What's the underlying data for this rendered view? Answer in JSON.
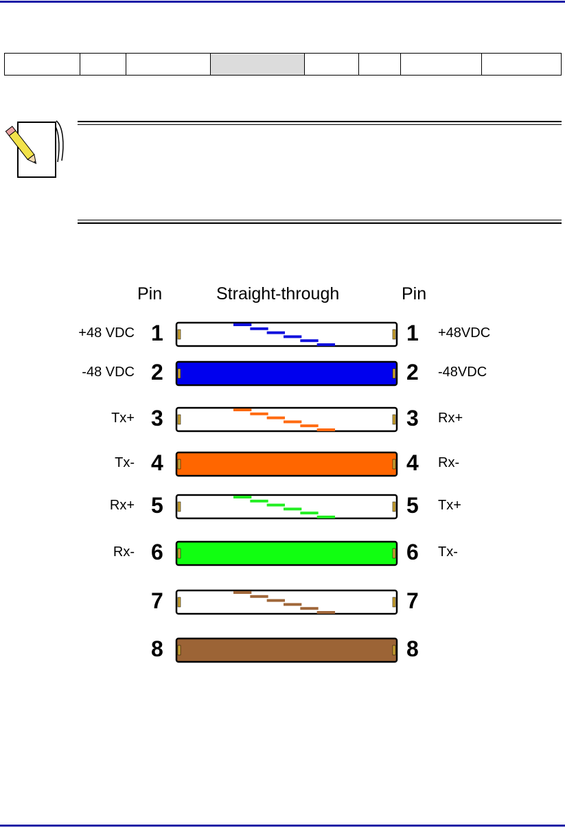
{
  "nav_table": {
    "cells": [
      "",
      "",
      "",
      "",
      "",
      "",
      "",
      ""
    ],
    "active_index": 3
  },
  "note": {
    "icon": "note-pencil-icon",
    "text": ""
  },
  "diagram": {
    "header_left": "Pin",
    "header_center": "Straight-through",
    "header_right": "Pin",
    "wires": [
      {
        "pin": "1",
        "left_label": "+48 VDC",
        "right_label": "+48VDC",
        "color": "#1111dd",
        "style": "striped"
      },
      {
        "pin": "2",
        "left_label": "-48 VDC",
        "right_label": "-48VDC",
        "color": "#0000ee",
        "style": "solid"
      },
      {
        "pin": "3",
        "left_label": "Tx+",
        "right_label": "Rx+",
        "color": "#ff6a10",
        "style": "striped"
      },
      {
        "pin": "4",
        "left_label": "Tx-",
        "right_label": "Rx-",
        "color": "#ff6600",
        "style": "solid"
      },
      {
        "pin": "5",
        "left_label": "Rx+",
        "right_label": "Tx+",
        "color": "#22ee22",
        "style": "striped"
      },
      {
        "pin": "6",
        "left_label": "Rx-",
        "right_label": "Tx-",
        "color": "#11ff11",
        "style": "solid"
      },
      {
        "pin": "7",
        "left_label": "",
        "right_label": "",
        "color": "#a0673a",
        "style": "striped"
      },
      {
        "pin": "8",
        "left_label": "",
        "right_label": "",
        "color": "#9c6436",
        "style": "solid"
      }
    ]
  }
}
